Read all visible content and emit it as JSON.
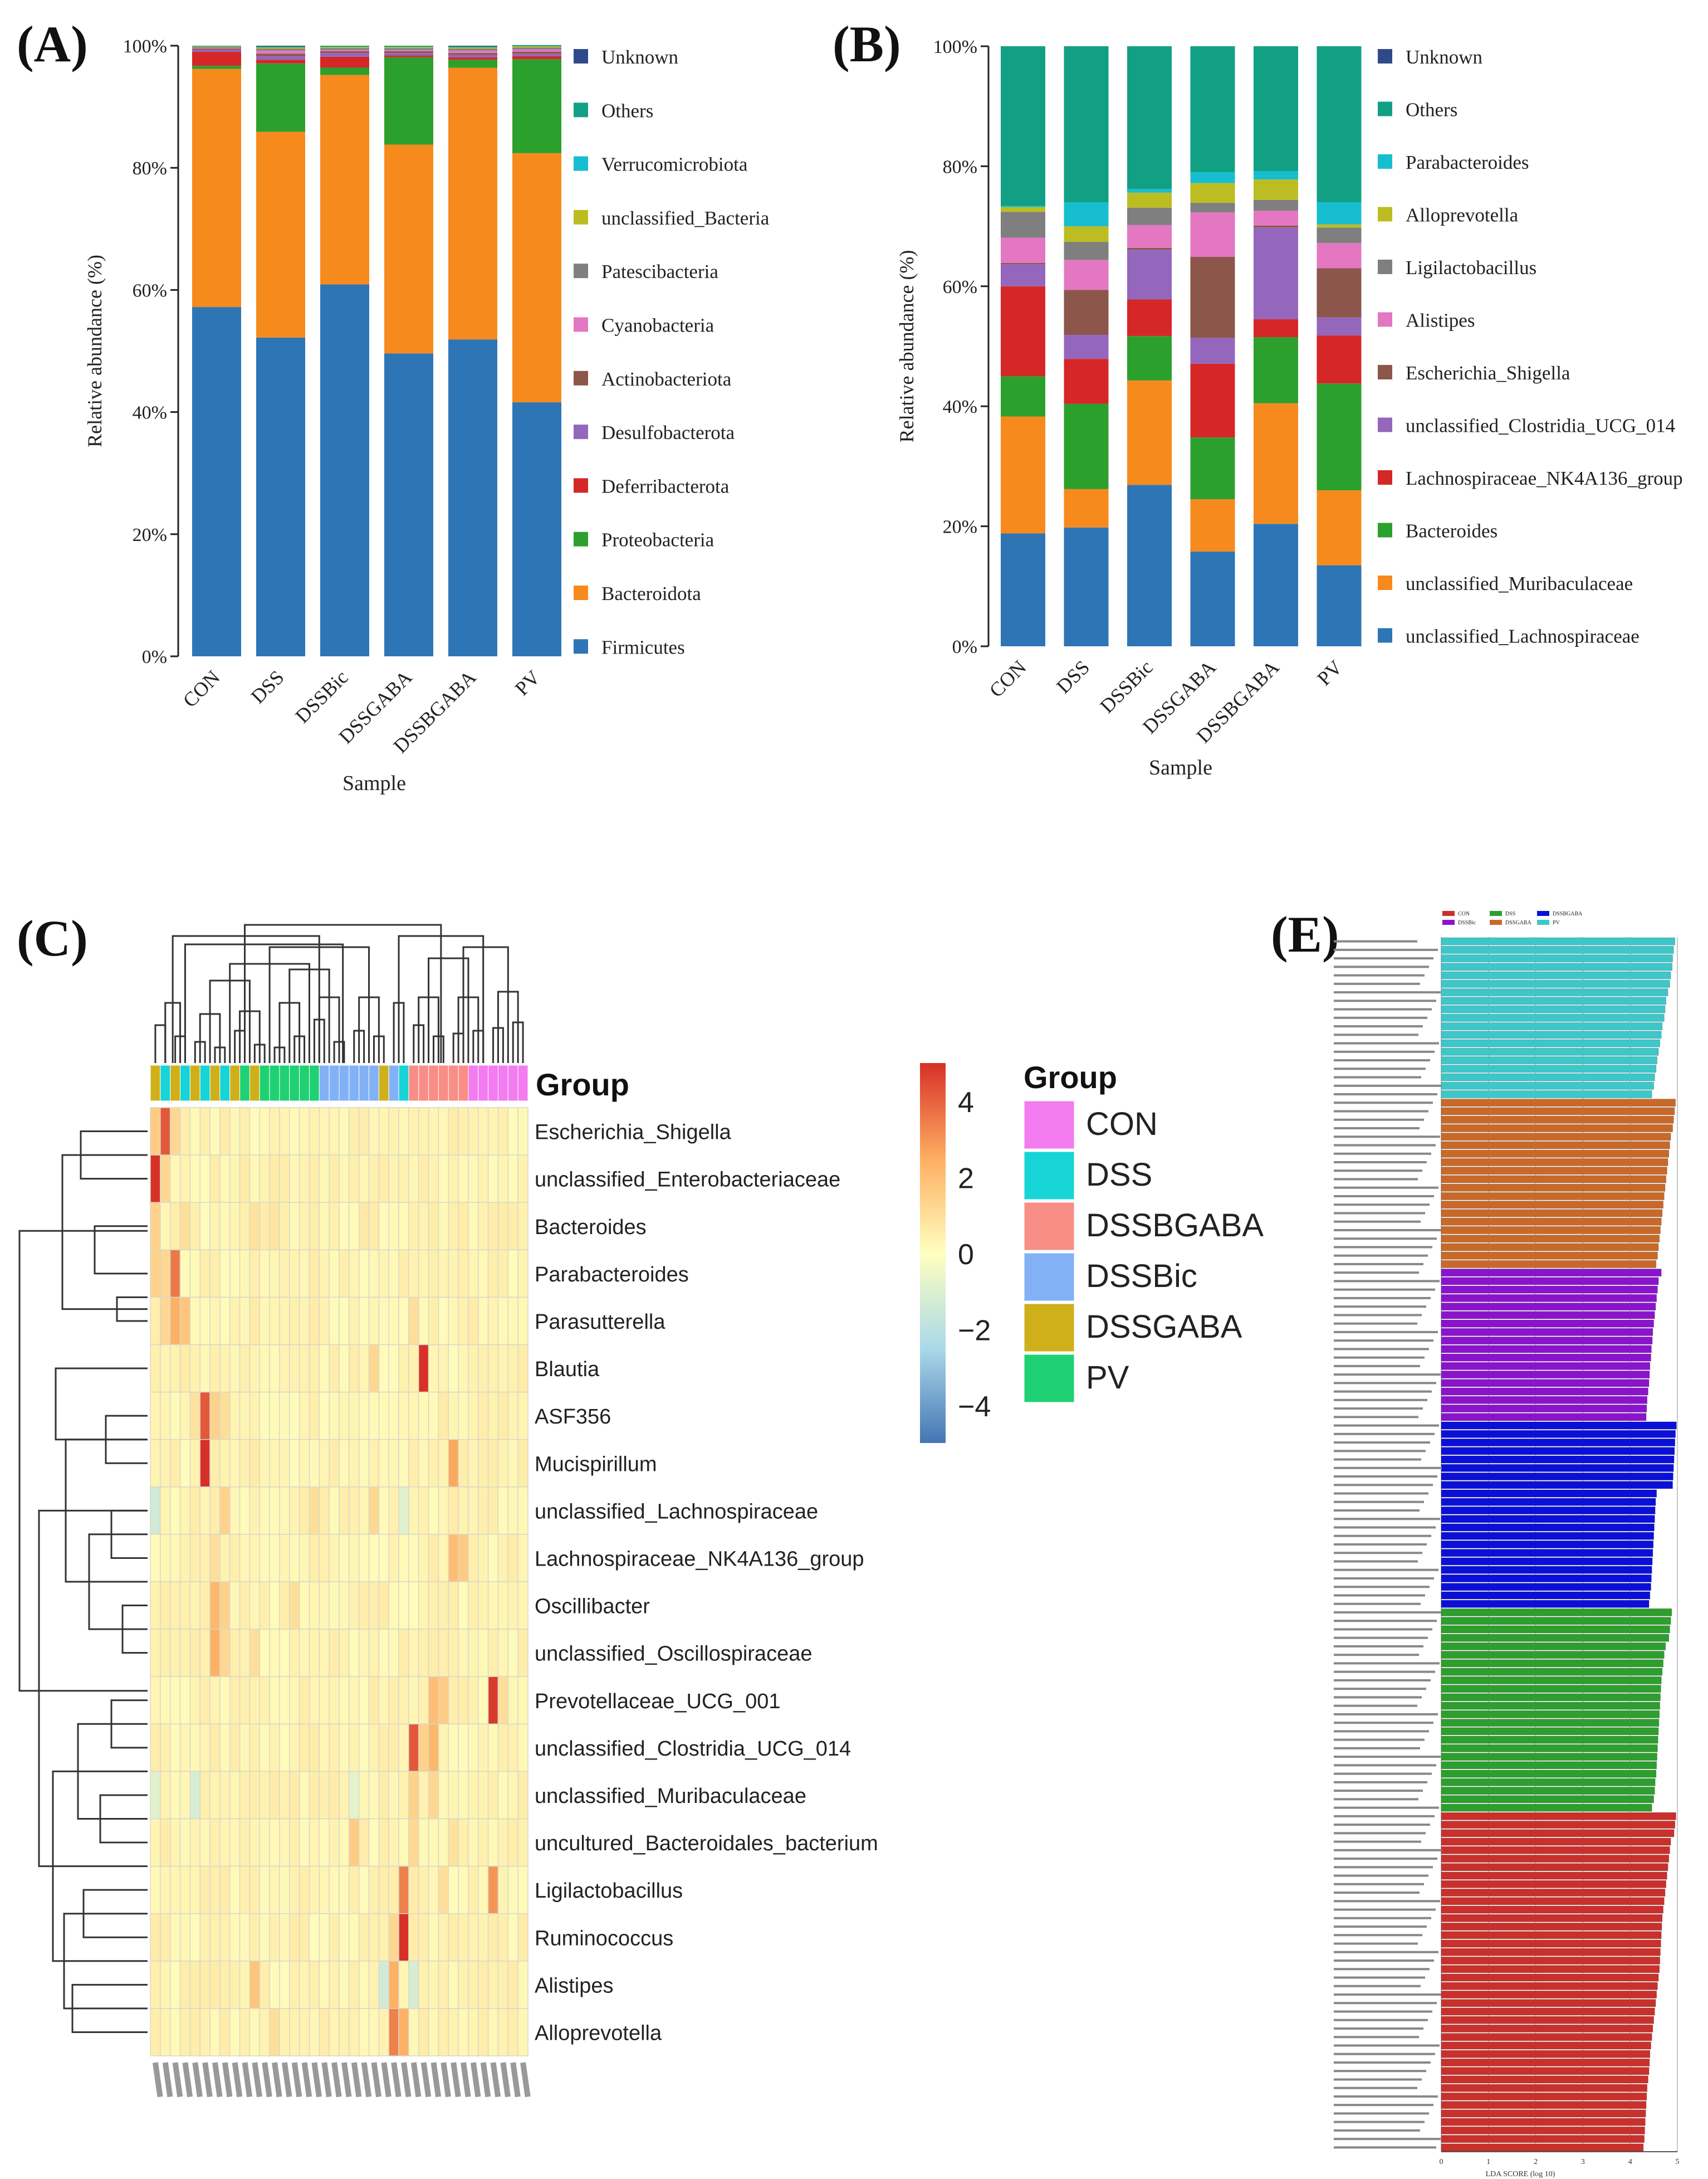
{
  "colors": {
    "firmicutes": "#2e75b6",
    "bacteroidota": "#f78a1d",
    "proteobacteria": "#2ca02c",
    "deferribacterota": "#d62728",
    "desulfobacterota": "#9467bd",
    "actinobacteriota": "#8c564b",
    "cyanobacteria": "#e377c2",
    "patescibacteria": "#7f7f7f",
    "unclassified_bacteria": "#bcbd22",
    "verrucomicrobiota": "#17becf",
    "others": "#12a085",
    "unknown": "#2f4a8a"
  },
  "chart_data": [
    {
      "type": "bar",
      "panel": "(A)",
      "stacked": true,
      "xlabel": "Sample",
      "ylabel": "Relative abundance (%)",
      "ylim": [
        0,
        100
      ],
      "yticks": [
        "0%",
        "20%",
        "40%",
        "60%",
        "80%",
        "100%"
      ],
      "categories": [
        "CON",
        "DSS",
        "DSSBic",
        "DSSGABA",
        "DSSBGABA",
        "PV"
      ],
      "series": [
        {
          "name": "Firmicutes",
          "color": "#2e75b6",
          "values": [
            57.2,
            52.2,
            60.9,
            49.6,
            51.9,
            41.6
          ]
        },
        {
          "name": "Bacteroidota",
          "color": "#f78a1d",
          "values": [
            39.0,
            33.7,
            34.3,
            34.2,
            44.5,
            40.8
          ]
        },
        {
          "name": "Proteobacteria",
          "color": "#2ca02c",
          "values": [
            0.5,
            11.2,
            1.2,
            14.3,
            1.3,
            15.4
          ]
        },
        {
          "name": "Deferribacterota",
          "color": "#d62728",
          "values": [
            2.3,
            0.6,
            1.8,
            0.3,
            0.4,
            0.5
          ]
        },
        {
          "name": "Desulfobacterota",
          "color": "#9467bd",
          "values": [
            0.3,
            0.6,
            0.6,
            0.4,
            0.4,
            0.4
          ]
        },
        {
          "name": "Actinobacteriota",
          "color": "#8c564b",
          "values": [
            0.2,
            0.4,
            0.3,
            0.3,
            0.3,
            0.3
          ]
        },
        {
          "name": "Cyanobacteria",
          "color": "#e377c2",
          "values": [
            0.1,
            0.5,
            0.2,
            0.2,
            0.4,
            0.4
          ]
        },
        {
          "name": "Patescibacteria",
          "color": "#7f7f7f",
          "values": [
            0.2,
            0.3,
            0.3,
            0.3,
            0.3,
            0.3
          ]
        },
        {
          "name": "unclassified_Bacteria",
          "color": "#bcbd22",
          "values": [
            0.1,
            0.2,
            0.2,
            0.2,
            0.2,
            0.2
          ]
        },
        {
          "name": "Verrucomicrobiota",
          "color": "#17becf",
          "values": [
            0.0,
            0.0,
            0.0,
            0.0,
            0.0,
            0.0
          ]
        },
        {
          "name": "Others",
          "color": "#12a085",
          "values": [
            0.1,
            0.2,
            0.2,
            0.2,
            0.2,
            0.2
          ]
        },
        {
          "name": "Unknown",
          "color": "#2f4a8a",
          "values": [
            0.0,
            0.1,
            0.0,
            0.0,
            0.1,
            0.0
          ]
        }
      ]
    },
    {
      "type": "bar",
      "panel": "(B)",
      "stacked": true,
      "xlabel": "Sample",
      "ylabel": "Relative abundance (%)",
      "ylim": [
        0,
        100
      ],
      "yticks": [
        "0%",
        "20%",
        "40%",
        "60%",
        "80%",
        "100%"
      ],
      "categories": [
        "CON",
        "DSS",
        "DSSBic",
        "DSSGABA",
        "DSSBGABA",
        "PV"
      ],
      "series": [
        {
          "name": "unclassified_Lachnospiraceae",
          "color": "#2e75b6",
          "values": [
            18.8,
            19.8,
            26.9,
            15.8,
            20.4,
            13.5
          ]
        },
        {
          "name": "unclassified_Muribaculaceae",
          "color": "#f78a1d",
          "values": [
            19.5,
            6.4,
            17.4,
            8.7,
            20.1,
            12.5
          ]
        },
        {
          "name": "Bacteroides",
          "color": "#2ca02c",
          "values": [
            6.7,
            14.2,
            7.4,
            10.3,
            11.0,
            17.8
          ]
        },
        {
          "name": "Lachnospiraceae_NK4A136_group",
          "color": "#d62728",
          "values": [
            15.0,
            7.5,
            6.1,
            12.3,
            3.0,
            8.0
          ]
        },
        {
          "name": "unclassified_Clostridia_UCG_014",
          "color": "#9467bd",
          "values": [
            3.7,
            4.0,
            8.3,
            4.3,
            15.3,
            3.0
          ]
        },
        {
          "name": "Escherichia_Shigella",
          "color": "#8c564b",
          "values": [
            0.2,
            7.5,
            0.3,
            13.5,
            0.3,
            8.2
          ]
        },
        {
          "name": "Alistipes",
          "color": "#e377c2",
          "values": [
            4.2,
            5.0,
            3.8,
            7.4,
            2.5,
            4.2
          ]
        },
        {
          "name": "Ligilactobacillus",
          "color": "#7f7f7f",
          "values": [
            4.3,
            3.0,
            2.9,
            1.6,
            1.8,
            2.6
          ]
        },
        {
          "name": "Alloprevotella",
          "color": "#bcbd22",
          "values": [
            0.8,
            2.6,
            2.5,
            3.3,
            3.4,
            0.5
          ]
        },
        {
          "name": "Parabacteroides",
          "color": "#17becf",
          "values": [
            0.2,
            4.0,
            0.6,
            1.8,
            1.4,
            3.7
          ]
        },
        {
          "name": "Others",
          "color": "#12a085",
          "values": [
            26.6,
            26.0,
            23.8,
            21.0,
            20.8,
            26.0
          ]
        },
        {
          "name": "Unknown",
          "color": "#2f4a8a",
          "values": [
            0.0,
            0.0,
            0.0,
            0.0,
            0.0,
            0.0
          ]
        }
      ]
    },
    {
      "type": "heatmap",
      "panel": "(C)",
      "rows": [
        "Escherichia_Shigella",
        "unclassified_Enterobacteriaceae",
        "Bacteroides",
        "Parabacteroides",
        "Parasutterella",
        "Blautia",
        "ASF356",
        "Mucispirillum",
        "unclassified_Lachnospiraceae",
        "Lachnospiraceae_NK4A136_group",
        "Oscillibacter",
        "unclassified_Oscillospiraceae",
        "Prevotellaceae_UCG_001",
        "unclassified_Clostridia_UCG_014",
        "unclassified_Muribaculaceae",
        "uncultured_Bacteroidales_bacterium",
        "Ligilactobacillus",
        "Ruminococcus",
        "Alistipes",
        "Alloprevotella"
      ],
      "column_groups": [
        "DSSGABA",
        "DSS",
        "DSSGABA",
        "DSS",
        "DSSGABA",
        "DSS",
        "DSSGABA",
        "DSS",
        "DSSGABA",
        "PV",
        "DSSGABA",
        "PV",
        "PV",
        "PV",
        "PV",
        "PV",
        "PV",
        "DSSBic",
        "DSSBic",
        "DSSBic",
        "DSSBic",
        "DSSBic",
        "DSSBic",
        "DSSGABA",
        "DSSBic",
        "DSS",
        "DSSBGABA",
        "DSSBGABA",
        "DSSBGABA",
        "DSSBGABA",
        "DSSBGABA",
        "DSSBGABA",
        "CON",
        "CON",
        "CON",
        "CON",
        "CON",
        "CON"
      ],
      "column_labels_note": "sample names (rotated, illegible)",
      "group_title": "Group",
      "legend_title": "Group",
      "legend_groups": [
        {
          "name": "CON",
          "color": "#f27cf0"
        },
        {
          "name": "DSS",
          "color": "#17d4d6"
        },
        {
          "name": "DSSBGABA",
          "color": "#f88e86"
        },
        {
          "name": "DSSBic",
          "color": "#82b1f5"
        },
        {
          "name": "DSSGABA",
          "color": "#cfb01a"
        },
        {
          "name": "PV",
          "color": "#1fd173"
        }
      ],
      "colorbar": {
        "ticks": [
          4,
          2,
          0,
          -2,
          -4
        ],
        "tick_labels": [
          "4",
          "2",
          "0",
          "−2",
          "−4"
        ],
        "range": [
          -5,
          5
        ],
        "colors": [
          "#4575b4",
          "#ffffbf",
          "#d73027"
        ]
      },
      "hot_cells": [
        {
          "row": 0,
          "col": 1,
          "value": 4.2
        },
        {
          "row": 0,
          "col": 0,
          "value": 1.6
        },
        {
          "row": 0,
          "col": 2,
          "value": 1.2
        },
        {
          "row": 1,
          "col": 0,
          "value": 5.0
        },
        {
          "row": 1,
          "col": 1,
          "value": 1.2
        },
        {
          "row": 2,
          "col": 0,
          "value": 1.4
        },
        {
          "row": 2,
          "col": 3,
          "value": 1.0
        },
        {
          "row": 2,
          "col": 10,
          "value": 0.9
        },
        {
          "row": 2,
          "col": 12,
          "value": 0.8
        },
        {
          "row": 2,
          "col": 21,
          "value": 0.7
        },
        {
          "row": 3,
          "col": 2,
          "value": 3.6
        },
        {
          "row": 3,
          "col": 0,
          "value": 1.4
        },
        {
          "row": 3,
          "col": 1,
          "value": 1.2
        },
        {
          "row": 4,
          "col": 2,
          "value": 2.4
        },
        {
          "row": 4,
          "col": 3,
          "value": 1.8
        },
        {
          "row": 4,
          "col": 1,
          "value": 1.2
        },
        {
          "row": 4,
          "col": 26,
          "value": 1.0
        },
        {
          "row": 5,
          "col": 27,
          "value": 5.0
        },
        {
          "row": 5,
          "col": 22,
          "value": 1.2
        },
        {
          "row": 6,
          "col": 5,
          "value": 4.2
        },
        {
          "row": 6,
          "col": 6,
          "value": 1.4
        },
        {
          "row": 6,
          "col": 7,
          "value": 1.0
        },
        {
          "row": 6,
          "col": 4,
          "value": 0.9
        },
        {
          "row": 7,
          "col": 5,
          "value": 5.0
        },
        {
          "row": 7,
          "col": 30,
          "value": 2.6
        },
        {
          "row": 8,
          "col": 7,
          "value": 1.4
        },
        {
          "row": 8,
          "col": 16,
          "value": 1.0
        },
        {
          "row": 8,
          "col": 22,
          "value": 1.2
        },
        {
          "row": 8,
          "col": 0,
          "value": -1.4
        },
        {
          "row": 8,
          "col": 25,
          "value": -0.9
        },
        {
          "row": 9,
          "col": 30,
          "value": 2.0
        },
        {
          "row": 9,
          "col": 31,
          "value": 1.6
        },
        {
          "row": 9,
          "col": 6,
          "value": 1.0
        },
        {
          "row": 10,
          "col": 6,
          "value": 2.2
        },
        {
          "row": 10,
          "col": 7,
          "value": 1.4
        },
        {
          "row": 10,
          "col": 14,
          "value": 1.0
        },
        {
          "row": 11,
          "col": 6,
          "value": 2.4
        },
        {
          "row": 11,
          "col": 7,
          "value": 1.2
        },
        {
          "row": 11,
          "col": 10,
          "value": 1.0
        },
        {
          "row": 12,
          "col": 34,
          "value": 4.8
        },
        {
          "row": 12,
          "col": 28,
          "value": 2.0
        },
        {
          "row": 12,
          "col": 29,
          "value": 1.6
        },
        {
          "row": 12,
          "col": 35,
          "value": 1.0
        },
        {
          "row": 13,
          "col": 26,
          "value": 4.2
        },
        {
          "row": 13,
          "col": 28,
          "value": 2.2
        },
        {
          "row": 13,
          "col": 27,
          "value": 1.4
        },
        {
          "row": 14,
          "col": 4,
          "value": -1.2
        },
        {
          "row": 14,
          "col": 20,
          "value": -0.8
        },
        {
          "row": 14,
          "col": 26,
          "value": 1.4
        },
        {
          "row": 14,
          "col": 28,
          "value": 1.2
        },
        {
          "row": 14,
          "col": 0,
          "value": -0.9
        },
        {
          "row": 15,
          "col": 20,
          "value": 1.6
        },
        {
          "row": 15,
          "col": 26,
          "value": 1.2
        },
        {
          "row": 15,
          "col": 30,
          "value": 0.9
        },
        {
          "row": 16,
          "col": 25,
          "value": 3.4
        },
        {
          "row": 16,
          "col": 34,
          "value": 3.0
        },
        {
          "row": 16,
          "col": 29,
          "value": 1.0
        },
        {
          "row": 17,
          "col": 25,
          "value": 5.0
        },
        {
          "row": 17,
          "col": 24,
          "value": 1.2
        },
        {
          "row": 18,
          "col": 10,
          "value": 1.8
        },
        {
          "row": 18,
          "col": 24,
          "value": 2.4
        },
        {
          "row": 18,
          "col": 23,
          "value": -1.4
        },
        {
          "row": 18,
          "col": 26,
          "value": -1.2
        },
        {
          "row": 19,
          "col": 24,
          "value": 3.4
        },
        {
          "row": 19,
          "col": 25,
          "value": 2.4
        },
        {
          "row": 19,
          "col": 12,
          "value": 1.0
        }
      ],
      "default_value": 0.35
    },
    {
      "type": "bar",
      "panel": "(E)",
      "orientation": "horizontal",
      "xlabel": "LDA SCORE (log 10)",
      "xlim": [
        0,
        5
      ],
      "xticks": [
        "0",
        "1",
        "2",
        "3",
        "4",
        "5"
      ],
      "legend": [
        {
          "name": "CON",
          "color": "#c9302c"
        },
        {
          "name": "DSS",
          "color": "#2e9e2e"
        },
        {
          "name": "DSSBGABA",
          "color": "#0a10d8"
        },
        {
          "name": "DSSBic",
          "color": "#8a14cc"
        },
        {
          "name": "DSSGABA",
          "color": "#c8692a"
        },
        {
          "name": "PV",
          "color": "#3ec7c9"
        }
      ],
      "groups": [
        {
          "group": "PV",
          "color": "#3ec7c9",
          "values": [
            4.95,
            4.92,
            4.9,
            4.89,
            4.86,
            4.84,
            4.8,
            4.76,
            4.74,
            4.72,
            4.68,
            4.66,
            4.63,
            4.6,
            4.57,
            4.55,
            4.52,
            4.5,
            4.46
          ]
        },
        {
          "group": "DSSGABA",
          "color": "#c8692a",
          "values": [
            4.96,
            4.94,
            4.92,
            4.9,
            4.86,
            4.84,
            4.82,
            4.8,
            4.78,
            4.76,
            4.74,
            4.72,
            4.7,
            4.68,
            4.66,
            4.64,
            4.62,
            4.6,
            4.58,
            4.55
          ]
        },
        {
          "group": "DSSBic",
          "color": "#8a14cc",
          "values": [
            4.66,
            4.6,
            4.58,
            4.56,
            4.54,
            4.52,
            4.5,
            4.48,
            4.47,
            4.45,
            4.44,
            4.42,
            4.41,
            4.4,
            4.38,
            4.36,
            4.35,
            4.34
          ]
        },
        {
          "group": "DSSBGABA",
          "color": "#0a10d8",
          "values": [
            4.98,
            4.96,
            4.95,
            4.94,
            4.93,
            4.92,
            4.91,
            4.9,
            4.56,
            4.54,
            4.53,
            4.52,
            4.51,
            4.5,
            4.49,
            4.48,
            4.47,
            4.46,
            4.45,
            4.44,
            4.42,
            4.4
          ]
        },
        {
          "group": "DSS",
          "color": "#2e9e2e",
          "values": [
            4.88,
            4.86,
            4.84,
            4.82,
            4.75,
            4.72,
            4.7,
            4.68,
            4.66,
            4.65,
            4.64,
            4.63,
            4.62,
            4.61,
            4.6,
            4.59,
            4.58,
            4.57,
            4.56,
            4.55,
            4.53,
            4.52,
            4.5,
            4.46
          ]
        },
        {
          "group": "CON",
          "color": "#c9302c",
          "values": [
            4.97,
            4.95,
            4.93,
            4.86,
            4.84,
            4.82,
            4.8,
            4.78,
            4.76,
            4.74,
            4.72,
            4.7,
            4.68,
            4.67,
            4.66,
            4.65,
            4.64,
            4.63,
            4.62,
            4.6,
            4.58,
            4.56,
            4.54,
            4.52,
            4.5,
            4.48,
            4.46,
            4.44,
            4.42,
            4.41,
            4.4,
            4.38,
            4.36,
            4.35,
            4.34,
            4.33,
            4.32,
            4.31,
            4.3,
            4.28
          ]
        }
      ]
    }
  ]
}
